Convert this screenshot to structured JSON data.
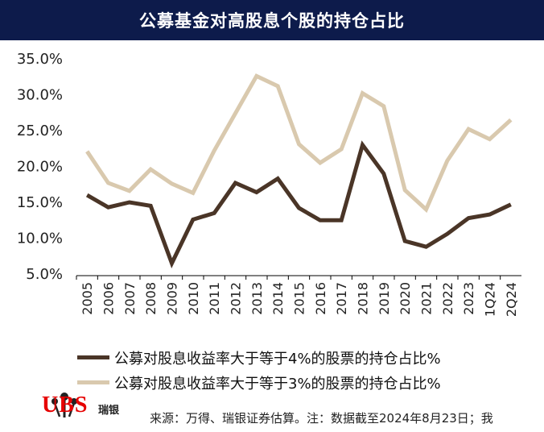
{
  "title": "公募基金对高股息个股的持仓占比",
  "chart_data": {
    "type": "line",
    "categories": [
      "2005",
      "2006",
      "2007",
      "2008",
      "2009",
      "2010",
      "2011",
      "2012",
      "2013",
      "2014",
      "2015",
      "2016",
      "2017",
      "2018",
      "2019",
      "2020",
      "2021",
      "2022",
      "2023",
      "1Q24",
      "2Q24"
    ],
    "ylim": [
      5,
      35
    ],
    "yticks": [
      "5.0%",
      "10.0%",
      "15.0%",
      "20.0%",
      "25.0%",
      "30.0%",
      "35.0%"
    ],
    "ytick_values": [
      5,
      10,
      15,
      20,
      25,
      30,
      35
    ],
    "series": [
      {
        "name": "公募对股息收益率大于等于4%的股票的持仓占比%",
        "color": "#4a3527",
        "values": [
          16.0,
          14.3,
          15.0,
          14.5,
          6.5,
          12.6,
          13.5,
          17.7,
          16.4,
          18.3,
          14.2,
          12.5,
          12.5,
          23.0,
          19.0,
          9.6,
          8.8,
          10.6,
          12.8,
          13.3,
          14.7
        ]
      },
      {
        "name": "公募对股息收益率大于等于3%的股票的持仓占比%",
        "color": "#d9c9ae",
        "values": [
          22.1,
          17.7,
          16.6,
          19.6,
          17.6,
          16.3,
          22.2,
          27.4,
          32.6,
          31.2,
          23.1,
          20.5,
          22.4,
          30.2,
          28.4,
          16.7,
          14.0,
          20.8,
          25.2,
          23.8,
          26.5
        ]
      }
    ]
  },
  "logo": {
    "brand": "UBS",
    "cn": "瑞银"
  },
  "source": "来源：万得、瑞银证券估算。注：数据截至2024年8月23日；我"
}
